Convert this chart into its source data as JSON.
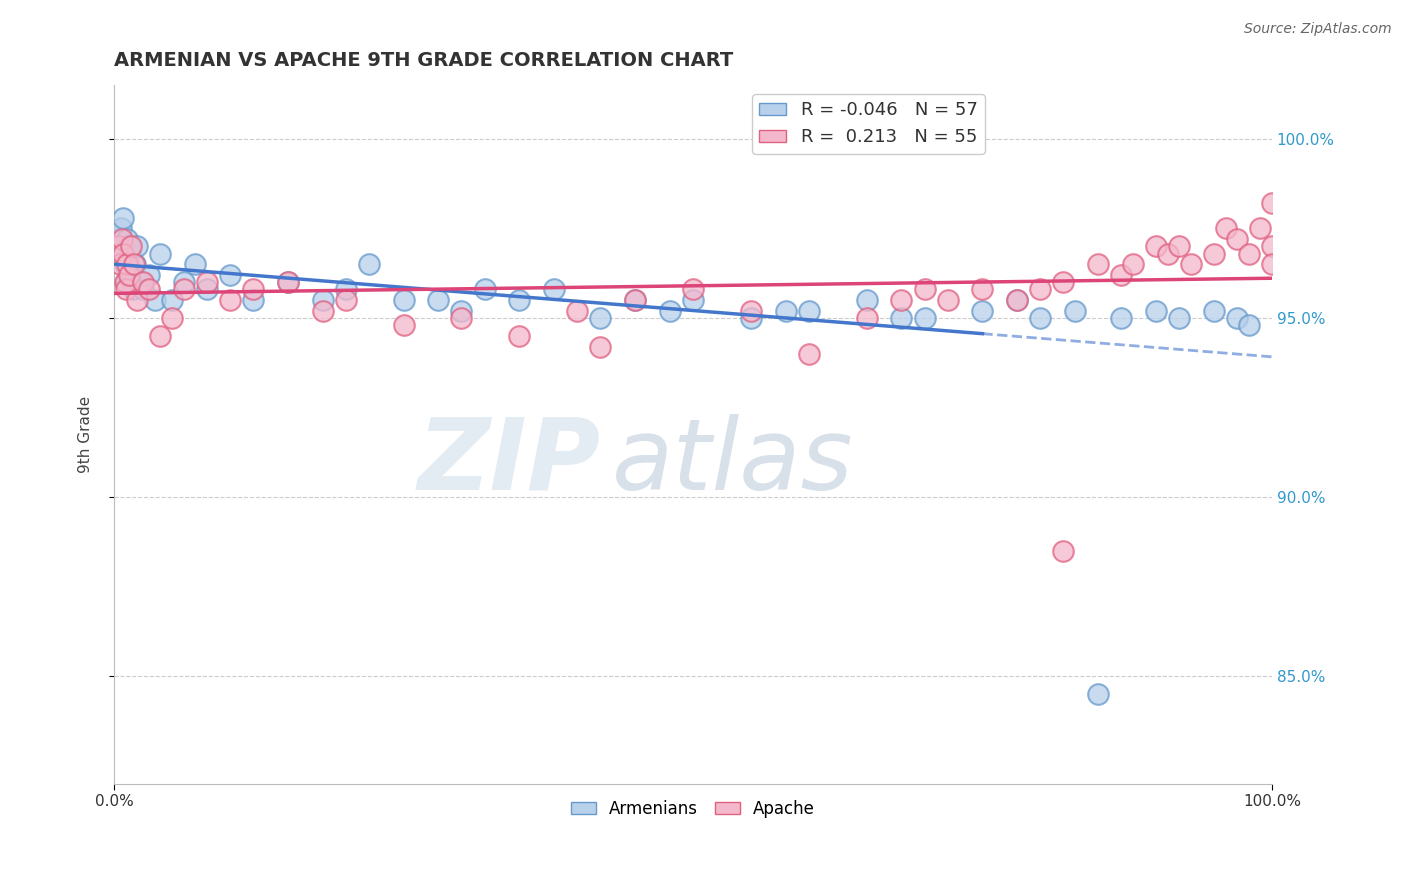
{
  "title": "ARMENIAN VS APACHE 9TH GRADE CORRELATION CHART",
  "source_text": "Source: ZipAtlas.com",
  "ylabel": "9th Grade",
  "xlim": [
    0.0,
    100.0
  ],
  "ylim": [
    82.0,
    101.5
  ],
  "yticks": [
    85.0,
    90.0,
    95.0,
    100.0
  ],
  "ytick_labels": [
    "85.0%",
    "90.0%",
    "95.0%",
    "100.0%"
  ],
  "xtick_labels": [
    "0.0%",
    "100.0%"
  ],
  "xticks": [
    0.0,
    100.0
  ],
  "armenian_color": "#b8d0ea",
  "apache_color": "#f4b8cc",
  "armenian_edge": "#6699cc",
  "apache_edge": "#e06080",
  "trend_armenian_color": "#4477cc",
  "trend_apache_color": "#dd4477",
  "trend_armenian_solid_end": 75.0,
  "legend_r_armenian": "-0.046",
  "legend_n_armenian": "57",
  "legend_r_apache": "0.213",
  "legend_n_apache": "55",
  "watermark": "ZIPatlas",
  "grid_color": "#cccccc",
  "background_color": "#ffffff",
  "armenian_x": [
    0.3,
    0.5,
    0.6,
    0.7,
    0.8,
    0.9,
    1.0,
    1.1,
    1.2,
    1.3,
    1.4,
    1.5,
    1.6,
    1.8,
    2.0,
    2.2,
    2.5,
    3.0,
    3.5,
    4.0,
    5.0,
    6.0,
    7.0,
    8.0,
    10.0,
    12.0,
    15.0,
    18.0,
    20.0,
    25.0,
    30.0,
    35.0,
    38.0,
    42.0,
    45.0,
    48.0,
    50.0,
    55.0,
    60.0,
    65.0,
    70.0,
    75.0,
    78.0,
    80.0,
    83.0,
    85.0,
    87.0,
    90.0,
    92.0,
    95.0,
    97.0,
    98.0,
    22.0,
    28.0,
    32.0,
    58.0,
    68.0
  ],
  "armenian_y": [
    97.2,
    96.8,
    97.5,
    97.0,
    97.8,
    96.5,
    96.0,
    97.2,
    96.5,
    97.0,
    96.8,
    96.2,
    95.8,
    96.5,
    97.0,
    96.0,
    95.8,
    96.2,
    95.5,
    96.8,
    95.5,
    96.0,
    96.5,
    95.8,
    96.2,
    95.5,
    96.0,
    95.5,
    95.8,
    95.5,
    95.2,
    95.5,
    95.8,
    95.0,
    95.5,
    95.2,
    95.5,
    95.0,
    95.2,
    95.5,
    95.0,
    95.2,
    95.5,
    95.0,
    95.2,
    84.5,
    95.0,
    95.2,
    95.0,
    95.2,
    95.0,
    94.8,
    96.5,
    95.5,
    95.8,
    95.2,
    95.0
  ],
  "apache_x": [
    0.3,
    0.5,
    0.7,
    0.8,
    0.9,
    1.0,
    1.1,
    1.3,
    1.5,
    1.7,
    2.0,
    2.5,
    3.0,
    4.0,
    5.0,
    6.0,
    8.0,
    10.0,
    12.0,
    15.0,
    18.0,
    20.0,
    25.0,
    30.0,
    35.0,
    40.0,
    42.0,
    45.0,
    50.0,
    55.0,
    60.0,
    65.0,
    68.0,
    70.0,
    72.0,
    75.0,
    78.0,
    80.0,
    82.0,
    85.0,
    87.0,
    88.0,
    90.0,
    91.0,
    92.0,
    93.0,
    95.0,
    96.0,
    97.0,
    98.0,
    99.0,
    100.0,
    100.0,
    100.0,
    82.0
  ],
  "apache_y": [
    97.0,
    96.5,
    97.2,
    96.8,
    96.0,
    95.8,
    96.5,
    96.2,
    97.0,
    96.5,
    95.5,
    96.0,
    95.8,
    94.5,
    95.0,
    95.8,
    96.0,
    95.5,
    95.8,
    96.0,
    95.2,
    95.5,
    94.8,
    95.0,
    94.5,
    95.2,
    94.2,
    95.5,
    95.8,
    95.2,
    94.0,
    95.0,
    95.5,
    95.8,
    95.5,
    95.8,
    95.5,
    95.8,
    96.0,
    96.5,
    96.2,
    96.5,
    97.0,
    96.8,
    97.0,
    96.5,
    96.8,
    97.5,
    97.2,
    96.8,
    97.5,
    98.2,
    97.0,
    96.5,
    88.5
  ]
}
